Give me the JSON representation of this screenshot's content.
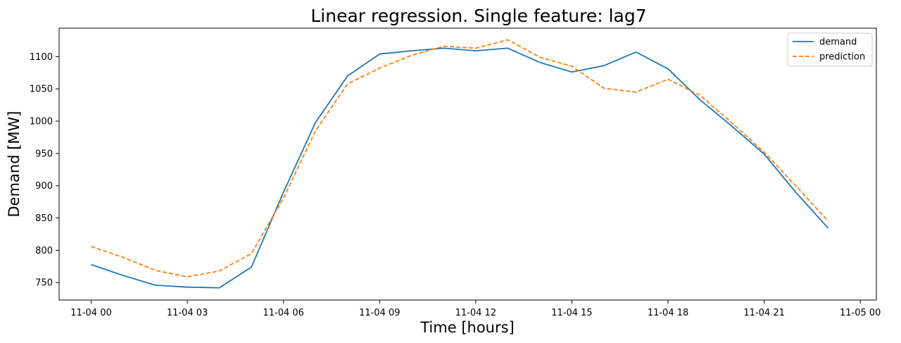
{
  "chart_data": {
    "type": "line",
    "title": "Linear regression. Single feature: lag7",
    "xlabel": "Time [hours]",
    "ylabel": "Demand [MW]",
    "x": [
      "11-04 00:00",
      "11-04 01:00",
      "11-04 02:00",
      "11-04 03:00",
      "11-04 04:00",
      "11-04 05:00",
      "11-04 06:00",
      "11-04 07:00",
      "11-04 08:00",
      "11-04 09:00",
      "11-04 10:00",
      "11-04 11:00",
      "11-04 12:00",
      "11-04 13:00",
      "11-04 14:00",
      "11-04 15:00",
      "11-04 16:00",
      "11-04 17:00",
      "11-04 18:00",
      "11-04 19:00",
      "11-04 20:00",
      "11-04 21:00",
      "11-04 22:00",
      "11-04 23:00"
    ],
    "xlim": [
      "11-03 23:00",
      "11-05 00:30"
    ],
    "xticks": [
      "11-04 00",
      "11-04 03",
      "11-04 06",
      "11-04 09",
      "11-04 12",
      "11-04 15",
      "11-04 18",
      "11-04 21",
      "11-05 00"
    ],
    "ylim": [
      723,
      1144
    ],
    "yticks": [
      750,
      800,
      850,
      900,
      950,
      1000,
      1050,
      1100
    ],
    "grid": false,
    "legend_position": "top-right",
    "series": [
      {
        "name": "demand",
        "color": "#1f77b4",
        "dash": "solid",
        "values": [
          778,
          761,
          746,
          743,
          742,
          774,
          890,
          998,
          1070,
          1104,
          1109,
          1113,
          1109,
          1113,
          1091,
          1076,
          1086,
          1107,
          1081,
          1033,
          992,
          949,
          889,
          834
        ]
      },
      {
        "name": "prediction",
        "color": "#ff7f0e",
        "dash": "dashed",
        "values": [
          806,
          789,
          769,
          759,
          768,
          795,
          881,
          985,
          1058,
          1082,
          1102,
          1116,
          1113,
          1126,
          1099,
          1085,
          1051,
          1045,
          1065,
          1040,
          997,
          952,
          899,
          845
        ]
      }
    ]
  }
}
